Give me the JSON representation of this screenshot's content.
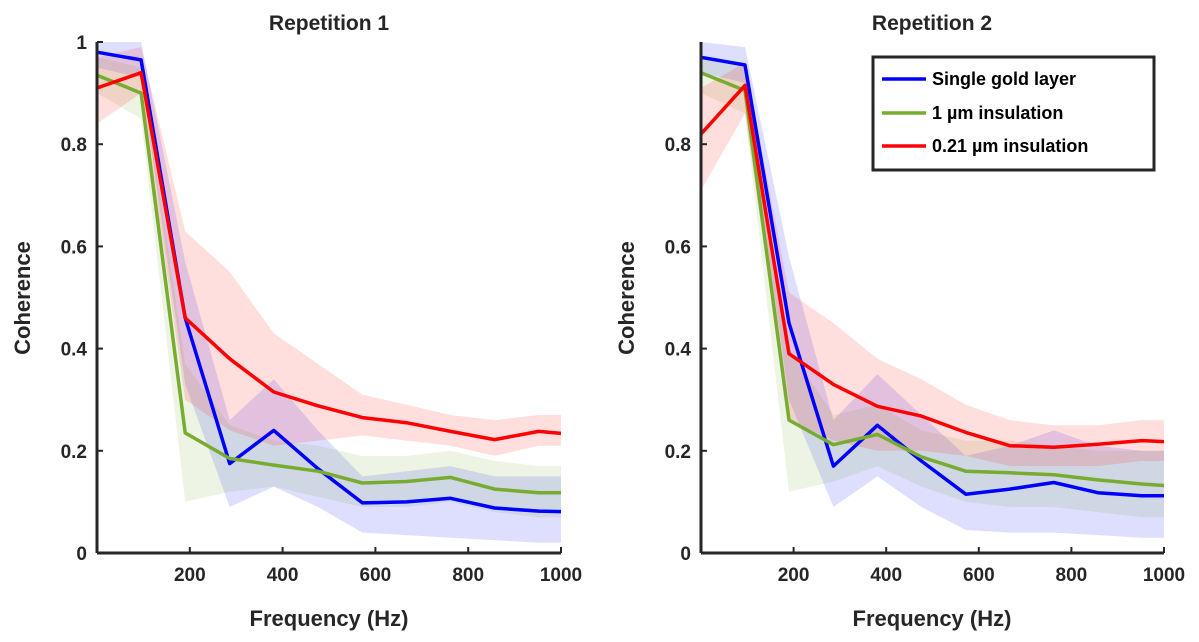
{
  "figure": {
    "legend": {
      "placement": "top-right of Repetition 2 panel",
      "entries": [
        {
          "label": "Single gold layer",
          "color": "#0000ff"
        },
        {
          "label": "1 µm insulation",
          "color": "#77ac30"
        },
        {
          "label": "0.21 µm insulation",
          "color": "#ff0000"
        }
      ]
    }
  },
  "chart_data": [
    {
      "type": "line",
      "title": "Repetition 1",
      "xlabel": "Frequency (Hz)",
      "ylabel": "Coherence",
      "xlim": [
        0,
        1000
      ],
      "ylim": [
        0,
        1
      ],
      "xticks": [
        200,
        400,
        600,
        800,
        1000
      ],
      "xtick_labels": [
        "200",
        "400",
        "600",
        "800",
        "1000"
      ],
      "yticks": [
        0,
        0.2,
        0.4,
        0.6,
        0.8,
        1
      ],
      "ytick_labels": [
        "0",
        "0.2",
        "0.4",
        "0.6",
        "0.8",
        "1"
      ],
      "grid": false,
      "x": [
        0,
        95,
        190,
        286,
        381,
        476,
        572,
        667,
        762,
        857,
        952,
        1000
      ],
      "series": [
        {
          "name": "Single gold layer",
          "color": "#0000ff",
          "values": [
            0.98,
            0.965,
            0.46,
            0.175,
            0.24,
            0.165,
            0.098,
            0.1,
            0.107,
            0.088,
            0.082,
            0.081
          ],
          "lower": [
            0.95,
            0.93,
            0.33,
            0.09,
            0.13,
            0.09,
            0.04,
            0.035,
            0.03,
            0.025,
            0.02,
            0.02
          ],
          "upper": [
            1.0,
            1.0,
            0.57,
            0.26,
            0.34,
            0.24,
            0.15,
            0.16,
            0.17,
            0.15,
            0.15,
            0.15
          ]
        },
        {
          "name": "1 µm insulation",
          "color": "#77ac30",
          "values": [
            0.935,
            0.9,
            0.235,
            0.185,
            0.172,
            0.16,
            0.137,
            0.14,
            0.148,
            0.125,
            0.118,
            0.118
          ],
          "lower": [
            0.9,
            0.85,
            0.1,
            0.12,
            0.13,
            0.11,
            0.09,
            0.09,
            0.1,
            0.08,
            0.07,
            0.07
          ],
          "upper": [
            0.97,
            0.95,
            0.37,
            0.25,
            0.22,
            0.21,
            0.19,
            0.19,
            0.2,
            0.18,
            0.17,
            0.17
          ]
        },
        {
          "name": "0.21 µm insulation",
          "color": "#ff0000",
          "values": [
            0.91,
            0.94,
            0.46,
            0.38,
            0.315,
            0.288,
            0.265,
            0.255,
            0.238,
            0.222,
            0.238,
            0.234
          ],
          "lower": [
            0.84,
            0.9,
            0.3,
            0.24,
            0.21,
            0.22,
            0.23,
            0.22,
            0.21,
            0.19,
            0.21,
            0.21
          ],
          "upper": [
            0.97,
            0.99,
            0.63,
            0.55,
            0.43,
            0.37,
            0.31,
            0.29,
            0.27,
            0.26,
            0.27,
            0.27
          ]
        }
      ]
    },
    {
      "type": "line",
      "title": "Repetition 2",
      "xlabel": "Frequency (Hz)",
      "ylabel": "Coherence",
      "xlim": [
        0,
        1000
      ],
      "ylim": [
        0,
        1
      ],
      "xticks": [
        200,
        400,
        600,
        800,
        1000
      ],
      "xtick_labels": [
        "200",
        "400",
        "600",
        "800",
        "1000"
      ],
      "yticks": [
        0,
        0.2,
        0.4,
        0.6,
        0.8
      ],
      "ytick_labels": [
        "0",
        "0.2",
        "0.4",
        "0.6",
        "0.8"
      ],
      "grid": false,
      "x": [
        0,
        95,
        190,
        286,
        381,
        476,
        572,
        667,
        762,
        857,
        952,
        1000
      ],
      "series": [
        {
          "name": "Single gold layer",
          "color": "#0000ff",
          "values": [
            0.97,
            0.955,
            0.45,
            0.17,
            0.25,
            0.18,
            0.115,
            0.125,
            0.138,
            0.118,
            0.112,
            0.112
          ],
          "lower": [
            0.94,
            0.92,
            0.3,
            0.09,
            0.15,
            0.09,
            0.045,
            0.04,
            0.04,
            0.035,
            0.03,
            0.03
          ],
          "upper": [
            1.0,
            0.99,
            0.58,
            0.26,
            0.35,
            0.27,
            0.19,
            0.21,
            0.24,
            0.21,
            0.2,
            0.2
          ]
        },
        {
          "name": "1 µm insulation",
          "color": "#77ac30",
          "values": [
            0.94,
            0.905,
            0.26,
            0.212,
            0.232,
            0.188,
            0.16,
            0.157,
            0.153,
            0.143,
            0.135,
            0.132
          ],
          "lower": [
            0.9,
            0.86,
            0.12,
            0.14,
            0.17,
            0.13,
            0.1,
            0.09,
            0.09,
            0.08,
            0.07,
            0.07
          ],
          "upper": [
            0.97,
            0.95,
            0.4,
            0.27,
            0.29,
            0.24,
            0.22,
            0.22,
            0.21,
            0.2,
            0.2,
            0.2
          ]
        },
        {
          "name": "0.21 µm insulation",
          "color": "#ff0000",
          "values": [
            0.82,
            0.915,
            0.39,
            0.33,
            0.287,
            0.268,
            0.236,
            0.21,
            0.207,
            0.213,
            0.22,
            0.218
          ],
          "lower": [
            0.71,
            0.86,
            0.26,
            0.22,
            0.2,
            0.2,
            0.19,
            0.17,
            0.17,
            0.17,
            0.18,
            0.18
          ],
          "upper": [
            0.91,
            0.96,
            0.51,
            0.45,
            0.38,
            0.34,
            0.29,
            0.26,
            0.25,
            0.25,
            0.26,
            0.26
          ]
        }
      ]
    }
  ]
}
